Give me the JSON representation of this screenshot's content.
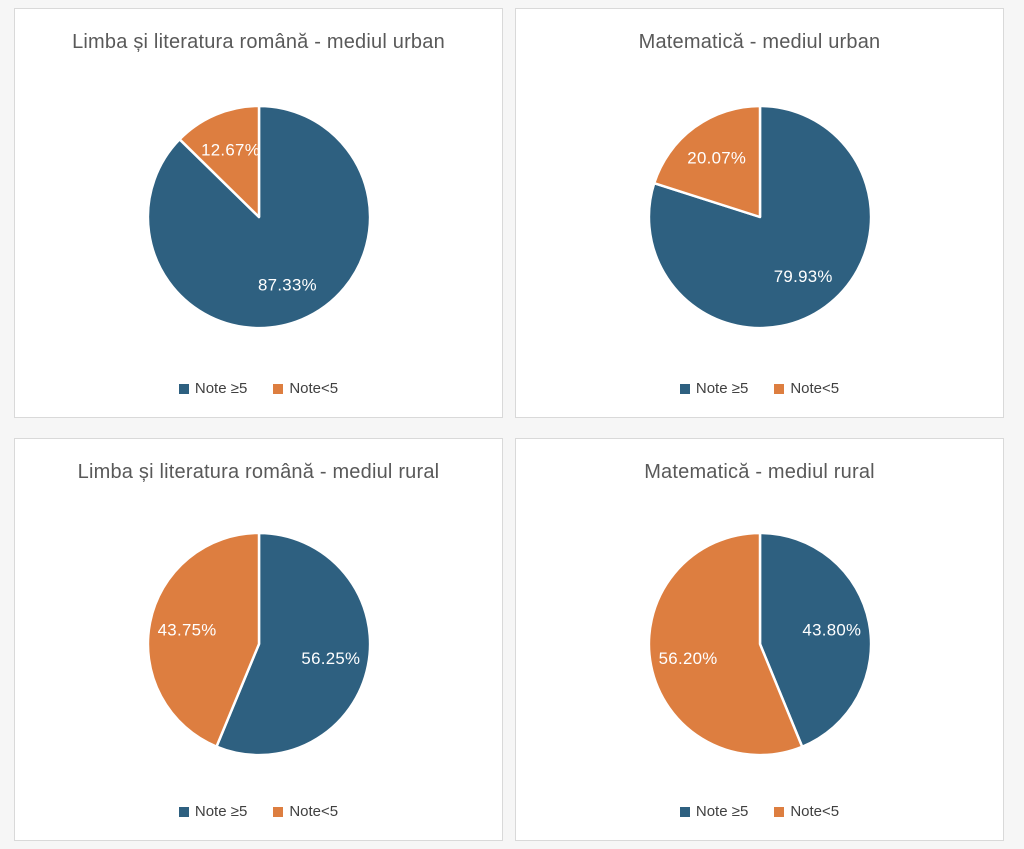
{
  "page": {
    "background_color": "#f6f6f6",
    "panel_border_color": "#d9d9d9",
    "title_color": "#595959",
    "legend_text_color": "#404040"
  },
  "chart_data": [
    {
      "type": "pie",
      "title": "Limba și literatura română - mediul urban",
      "legend_position": "bottom",
      "label_color": "#ffffff",
      "slices": [
        {
          "label": "Note ≥5",
          "value": 87.33,
          "display": "87.33%",
          "color": "#2E6080"
        },
        {
          "label": "Note<5",
          "value": 12.67,
          "display": "12.67%",
          "color": "#DD7E40"
        }
      ]
    },
    {
      "type": "pie",
      "title": "Matematică - mediul urban",
      "legend_position": "bottom",
      "label_color": "#ffffff",
      "slices": [
        {
          "label": "Note ≥5",
          "value": 79.93,
          "display": "79.93%",
          "color": "#2E6080"
        },
        {
          "label": "Note<5",
          "value": 20.07,
          "display": "20.07%",
          "color": "#DD7E40"
        }
      ]
    },
    {
      "type": "pie",
      "title": "Limba și literatura română - mediul rural",
      "legend_position": "bottom",
      "label_color": "#ffffff",
      "slices": [
        {
          "label": "Note ≥5",
          "value": 56.25,
          "display": "56.25%",
          "color": "#2E6080"
        },
        {
          "label": "Note<5",
          "value": 43.75,
          "display": "43.75%",
          "color": "#DD7E40"
        }
      ]
    },
    {
      "type": "pie",
      "title": "Matematică - mediul rural",
      "legend_position": "bottom",
      "label_color": "#ffffff",
      "slices": [
        {
          "label": "Note ≥5",
          "value": 43.8,
          "display": "43.80%",
          "color": "#2E6080"
        },
        {
          "label": "Note<5",
          "value": 56.2,
          "display": "56.20%",
          "color": "#DD7E40"
        }
      ]
    }
  ]
}
